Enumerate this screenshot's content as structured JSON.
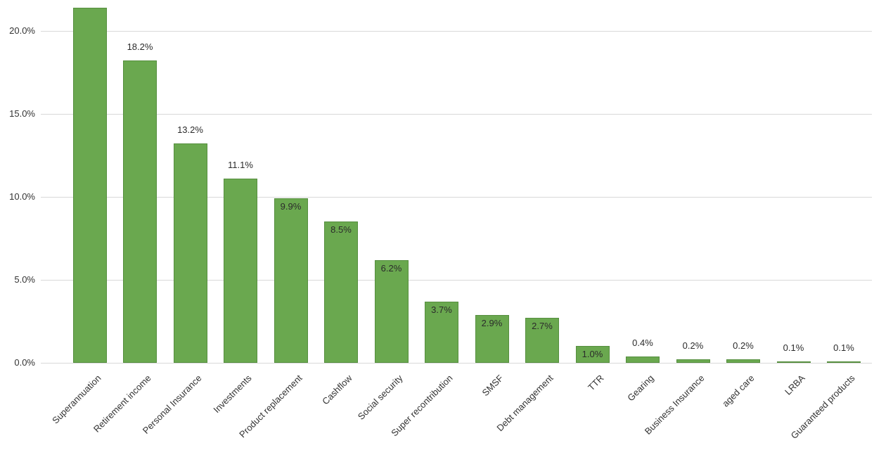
{
  "chart_data": {
    "type": "bar",
    "title": "",
    "xlabel": "",
    "ylabel": "",
    "categories": [
      "Superannuation",
      "Retirement income",
      "Personal Insurance",
      "Investments",
      "Product replacement",
      "Cashflow",
      "Social security",
      "Super recontribution",
      "SMSF",
      "Debt management",
      "TTR",
      "Gearing",
      "Business Insurance",
      "aged care",
      "LRBA",
      "Guaranteed products"
    ],
    "values": [
      21.4,
      18.2,
      13.2,
      11.1,
      9.9,
      8.5,
      6.2,
      3.7,
      2.9,
      2.7,
      1.0,
      0.4,
      0.2,
      0.2,
      0.1,
      0.1
    ],
    "value_labels": [
      "",
      "18.2%",
      "13.2%",
      "11.1%",
      "9.9%",
      "8.5%",
      "6.2%",
      "3.7%",
      "2.9%",
      "2.7%",
      "1.0%",
      "0.4%",
      "0.2%",
      "0.2%",
      "0.1%",
      "0.1%"
    ],
    "label_position": [
      "none",
      "above",
      "above",
      "above",
      "inside",
      "inside",
      "inside",
      "inside",
      "inside",
      "inside",
      "inside",
      "above",
      "above",
      "above",
      "above",
      "above"
    ],
    "y_ticks": [
      "0.0%",
      "5.0%",
      "10.0%",
      "15.0%",
      "20.0%"
    ],
    "y_tick_values": [
      0,
      5,
      10,
      15,
      20
    ],
    "ylim": [
      0,
      20
    ],
    "grid": true,
    "legend_position": "none",
    "colors": {
      "bar_fill": "#6aa84f",
      "bar_border": "#568f3f",
      "gridline": "#d9d9d9",
      "text": "#333333",
      "background": "#ffffff"
    }
  }
}
